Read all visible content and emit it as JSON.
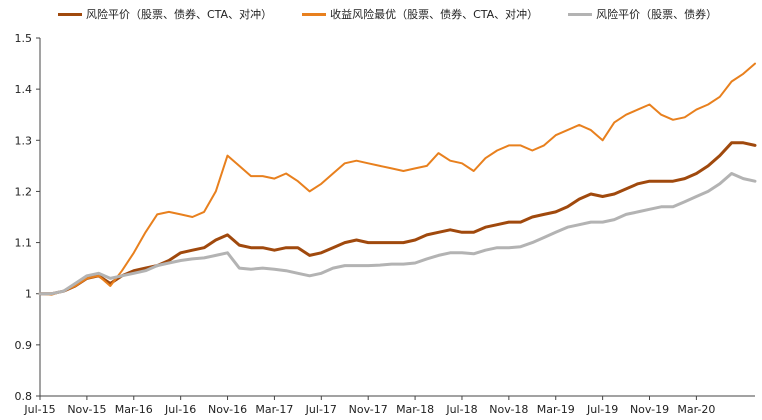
{
  "chart_data": {
    "type": "line",
    "title": "",
    "xlabel": "",
    "ylabel": "",
    "ylim": [
      0.8,
      1.5
    ],
    "yticks": [
      "0.8",
      "0.9",
      "1",
      "1.1",
      "1.2",
      "1.3",
      "1.4",
      "1.5"
    ],
    "xticks": [
      "Jul-15",
      "Nov-15",
      "Mar-16",
      "Jul-16",
      "Nov-16",
      "Mar-17",
      "Jul-17",
      "Nov-17",
      "Mar-18",
      "Jul-18",
      "Nov-18",
      "Mar-19",
      "Jul-19",
      "Nov-19",
      "Mar-20"
    ],
    "legend_position": "top",
    "grid": false,
    "x_months": [
      0,
      1,
      2,
      3,
      4,
      5,
      6,
      7,
      8,
      9,
      10,
      11,
      12,
      13,
      14,
      15,
      16,
      17,
      18,
      19,
      20,
      21,
      22,
      23,
      24,
      25,
      26,
      27,
      28,
      29,
      30,
      31,
      32,
      33,
      34,
      35,
      36,
      37,
      38,
      39,
      40,
      41,
      42,
      43,
      44,
      45,
      46,
      47,
      48,
      49,
      50,
      51,
      52,
      53,
      54,
      55,
      56,
      57,
      58,
      59,
      60,
      61
    ],
    "series": [
      {
        "name": "风险平价（股票、债券、CTA、对冲）",
        "color": "#a0490d",
        "values": [
          1.0,
          1.0,
          1.005,
          1.015,
          1.03,
          1.035,
          1.02,
          1.035,
          1.045,
          1.05,
          1.055,
          1.065,
          1.08,
          1.085,
          1.09,
          1.105,
          1.115,
          1.095,
          1.09,
          1.09,
          1.085,
          1.09,
          1.09,
          1.075,
          1.08,
          1.09,
          1.1,
          1.105,
          1.1,
          1.1,
          1.1,
          1.1,
          1.105,
          1.115,
          1.12,
          1.125,
          1.12,
          1.12,
          1.13,
          1.135,
          1.14,
          1.14,
          1.15,
          1.155,
          1.16,
          1.17,
          1.185,
          1.195,
          1.19,
          1.195,
          1.205,
          1.215,
          1.22,
          1.22,
          1.22,
          1.225,
          1.235,
          1.25,
          1.27,
          1.295,
          1.295,
          1.29
        ]
      },
      {
        "name": "收益风险最优（股票、债券、CTA、对冲）",
        "color": "#e8801e",
        "values": [
          1.0,
          0.998,
          1.005,
          1.015,
          1.03,
          1.035,
          1.015,
          1.045,
          1.08,
          1.12,
          1.155,
          1.16,
          1.155,
          1.15,
          1.16,
          1.2,
          1.27,
          1.25,
          1.23,
          1.23,
          1.225,
          1.235,
          1.22,
          1.2,
          1.215,
          1.235,
          1.255,
          1.26,
          1.255,
          1.25,
          1.245,
          1.24,
          1.245,
          1.25,
          1.275,
          1.26,
          1.255,
          1.24,
          1.265,
          1.28,
          1.29,
          1.29,
          1.28,
          1.29,
          1.31,
          1.32,
          1.33,
          1.32,
          1.3,
          1.335,
          1.35,
          1.36,
          1.37,
          1.35,
          1.34,
          1.345,
          1.36,
          1.37,
          1.385,
          1.415,
          1.43,
          1.45
        ]
      },
      {
        "name": "风险平价（股票、债券）",
        "color": "#b3b3b3",
        "values": [
          1.0,
          1.0,
          1.005,
          1.02,
          1.035,
          1.04,
          1.03,
          1.035,
          1.04,
          1.045,
          1.055,
          1.06,
          1.065,
          1.068,
          1.07,
          1.075,
          1.08,
          1.05,
          1.048,
          1.05,
          1.048,
          1.045,
          1.04,
          1.035,
          1.04,
          1.05,
          1.055,
          1.055,
          1.055,
          1.056,
          1.058,
          1.058,
          1.06,
          1.068,
          1.075,
          1.08,
          1.08,
          1.078,
          1.085,
          1.09,
          1.09,
          1.092,
          1.1,
          1.11,
          1.12,
          1.13,
          1.135,
          1.14,
          1.14,
          1.145,
          1.155,
          1.16,
          1.165,
          1.17,
          1.17,
          1.18,
          1.19,
          1.2,
          1.215,
          1.235,
          1.225,
          1.22
        ]
      }
    ]
  }
}
